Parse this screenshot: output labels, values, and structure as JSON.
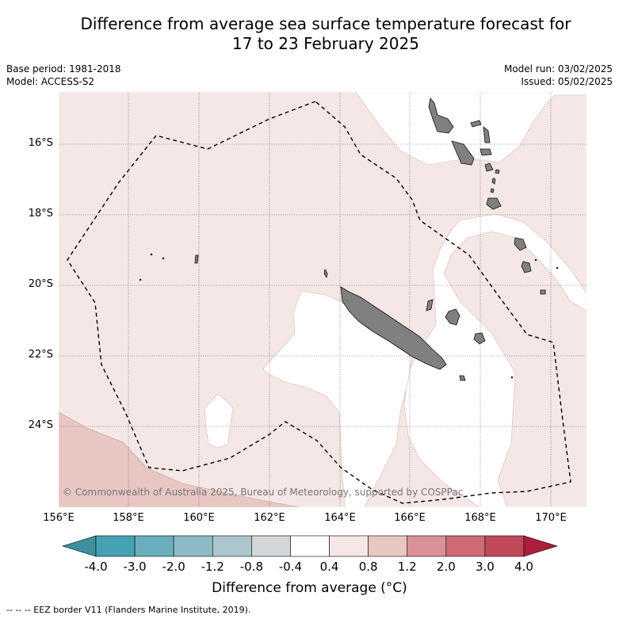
{
  "title": {
    "line1": "Difference from average sea surface temperature forecast for",
    "line2": "17 to 23 February 2025"
  },
  "meta": {
    "base_period": "Base period: 1981-2018",
    "model": "Model: ACCESS-S2",
    "model_run": "Model run: 03/02/2025",
    "issued": "Issued: 05/02/2025"
  },
  "axes": {
    "lat_ticks": [
      "16°S",
      "18°S",
      "20°S",
      "22°S",
      "24°S"
    ],
    "lon_ticks": [
      "156°E",
      "158°E",
      "160°E",
      "162°E",
      "164°E",
      "166°E",
      "168°E",
      "170°E"
    ]
  },
  "copyright": "© Commonwealth of Australia 2025, Bureau of Meteorology, supported by COSPPac",
  "colorbar": {
    "ticks": [
      "-4.0",
      "-3.0",
      "-2.0",
      "-1.2",
      "-0.8",
      "-0.4",
      "0.4",
      "0.8",
      "1.2",
      "2.0",
      "3.0",
      "4.0"
    ],
    "colors": [
      "#3e8f9d",
      "#45a2b2",
      "#6aaebd",
      "#8dbac5",
      "#abc7cd",
      "#d3d6d6",
      "#ffffff",
      "#f4e7e5",
      "#e8c6c2",
      "#d99097",
      "#ce6b76",
      "#c04859",
      "#ad1d3e"
    ],
    "label": "Difference from average (°C)"
  },
  "legend": {
    "eez_line": "--  --  -- EEZ border V11 (Flanders Marine Institute, 2019)."
  },
  "map_colors": {
    "warm_0_4_to_0_8": "#f4e7e5",
    "warm_0_8_to_1_2": "#e8c6c2",
    "neutral": "#ffffff",
    "land": "#808080"
  }
}
